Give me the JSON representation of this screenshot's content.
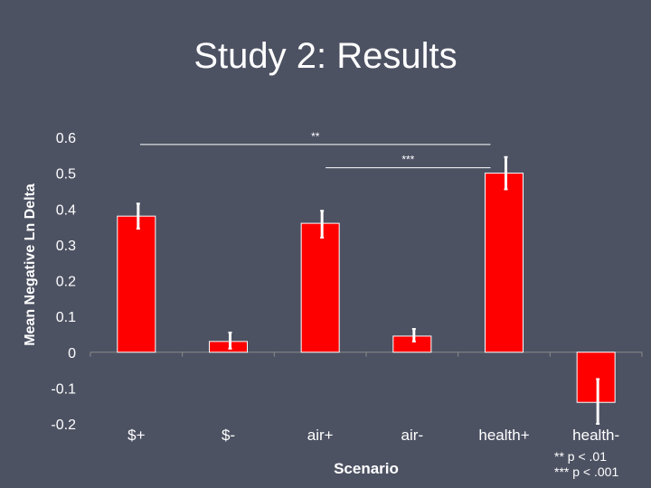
{
  "slide": {
    "title": "Study 2: Results"
  },
  "chart_data": {
    "type": "bar",
    "title": "",
    "xlabel": "Scenario",
    "ylabel": "Mean Negative Ln Delta",
    "ylim": [
      -0.2,
      0.6
    ],
    "y_ticks": [
      "0.6",
      "0.5",
      "0.4",
      "0.3",
      "0.2",
      "0.1",
      "0",
      "-0.1",
      "-0.2"
    ],
    "categories": [
      "$+",
      "$-",
      "air+",
      "air-",
      "health+",
      "health-"
    ],
    "values": [
      0.38,
      0.03,
      0.36,
      0.045,
      0.5,
      -0.14
    ],
    "error_bars": [
      [
        0.345,
        0.415
      ],
      [
        0.01,
        0.055
      ],
      [
        0.32,
        0.395
      ],
      [
        0.03,
        0.065
      ],
      [
        0.455,
        0.545
      ],
      [
        -0.2,
        -0.075
      ]
    ],
    "bar_color": "#ff0000",
    "grid": false,
    "significance": [
      {
        "label": "**",
        "from_category": "$+",
        "to_category": "health+",
        "level": 0.58
      },
      {
        "label": "***",
        "from_category": "air+",
        "to_category": "health+",
        "level": 0.515
      }
    ],
    "legend_notes": [
      "**  p < .01",
      "*** p < .001"
    ]
  }
}
